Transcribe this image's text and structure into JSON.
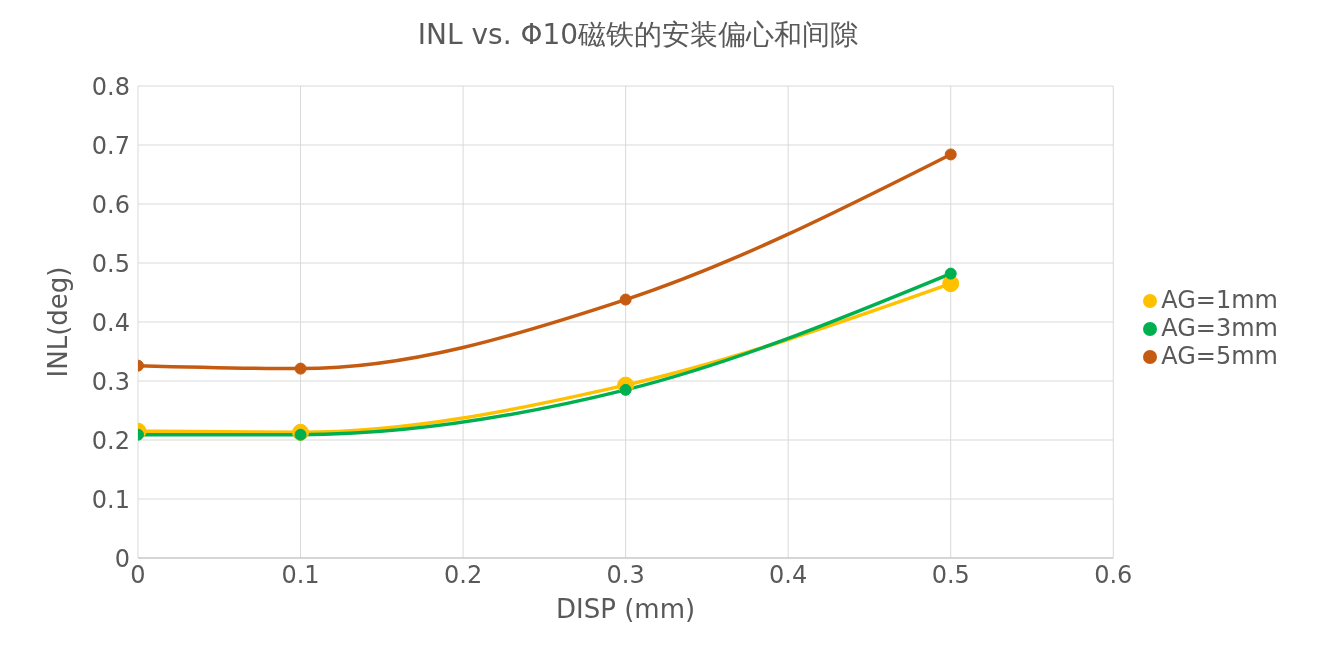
{
  "chart_data": {
    "type": "line",
    "title": "INL vs. Φ10磁铁的安装偏心和间隙",
    "xlabel": "DISP (mm)",
    "ylabel": "INL(deg)",
    "x": [
      0,
      0.1,
      0.3,
      0.5
    ],
    "series": [
      {
        "name": "AG=1mm",
        "color": "#ffc000",
        "values": [
          0.215,
          0.213,
          0.293,
          0.465
        ]
      },
      {
        "name": "AG=3mm",
        "color": "#00b050",
        "values": [
          0.209,
          0.209,
          0.285,
          0.482
        ]
      },
      {
        "name": "AG=5mm",
        "color": "#c55a11",
        "values": [
          0.326,
          0.321,
          0.438,
          0.684
        ]
      }
    ],
    "xlim": [
      0,
      0.6
    ],
    "xticks": [
      0,
      0.1,
      0.2,
      0.3,
      0.4,
      0.5,
      0.6
    ],
    "ylim": [
      0,
      0.8
    ],
    "yticks": [
      0,
      0.1,
      0.2,
      0.3,
      0.4,
      0.5,
      0.6,
      0.7,
      0.8
    ],
    "grid": true,
    "legend": "right",
    "marker": "circle",
    "line_style": "solid"
  }
}
